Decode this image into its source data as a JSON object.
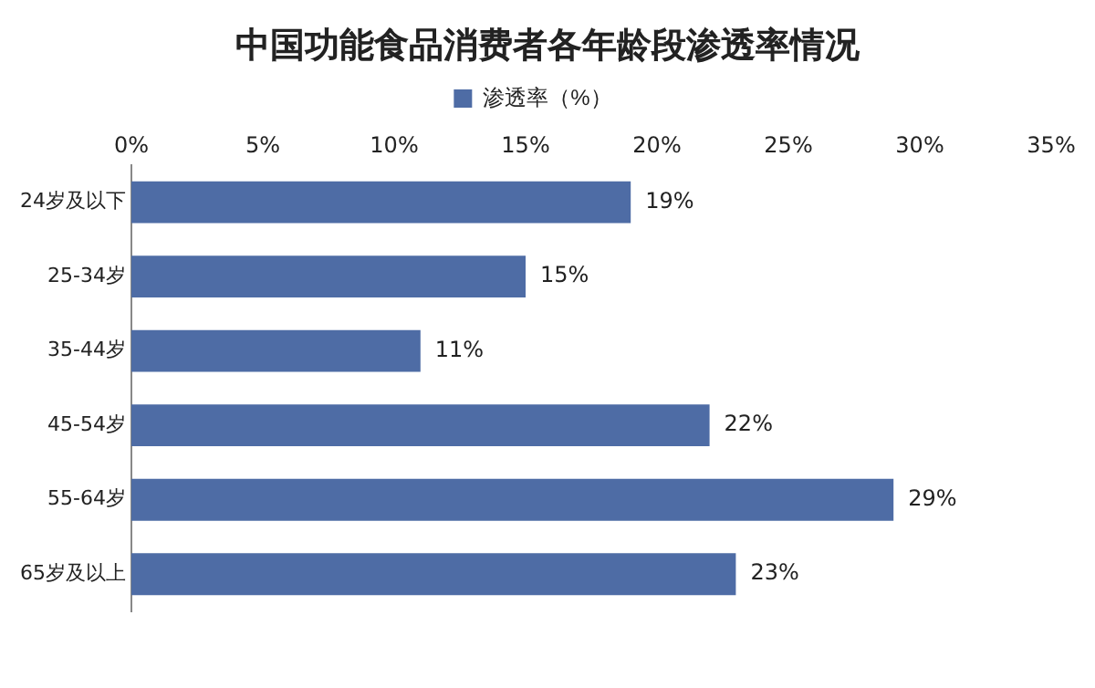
{
  "chart_data": {
    "type": "bar",
    "orientation": "horizontal",
    "title": "中国功能食品消费者各年龄段渗透率情况",
    "categories": [
      "24岁及以下",
      "25-34岁",
      "35-44岁",
      "45-54岁",
      "55-64岁",
      "65岁及以上"
    ],
    "series": [
      {
        "name": "渗透率（%）",
        "color": "#4e6ca5",
        "values": [
          19,
          15,
          11,
          22,
          29,
          23
        ],
        "value_labels": [
          "19%",
          "15%",
          "11%",
          "22%",
          "29%",
          "23%"
        ]
      }
    ],
    "xlim": [
      0,
      35
    ],
    "xticks": [
      {
        "value": 0,
        "label": "0%"
      },
      {
        "value": 5,
        "label": "5%"
      },
      {
        "value": 10,
        "label": "10%"
      },
      {
        "value": 15,
        "label": "15%"
      },
      {
        "value": 20,
        "label": "20%"
      },
      {
        "value": 25,
        "label": "25%"
      },
      {
        "value": 30,
        "label": "30%"
      },
      {
        "value": 35,
        "label": "35%"
      }
    ],
    "grid": false,
    "legend": "top"
  }
}
